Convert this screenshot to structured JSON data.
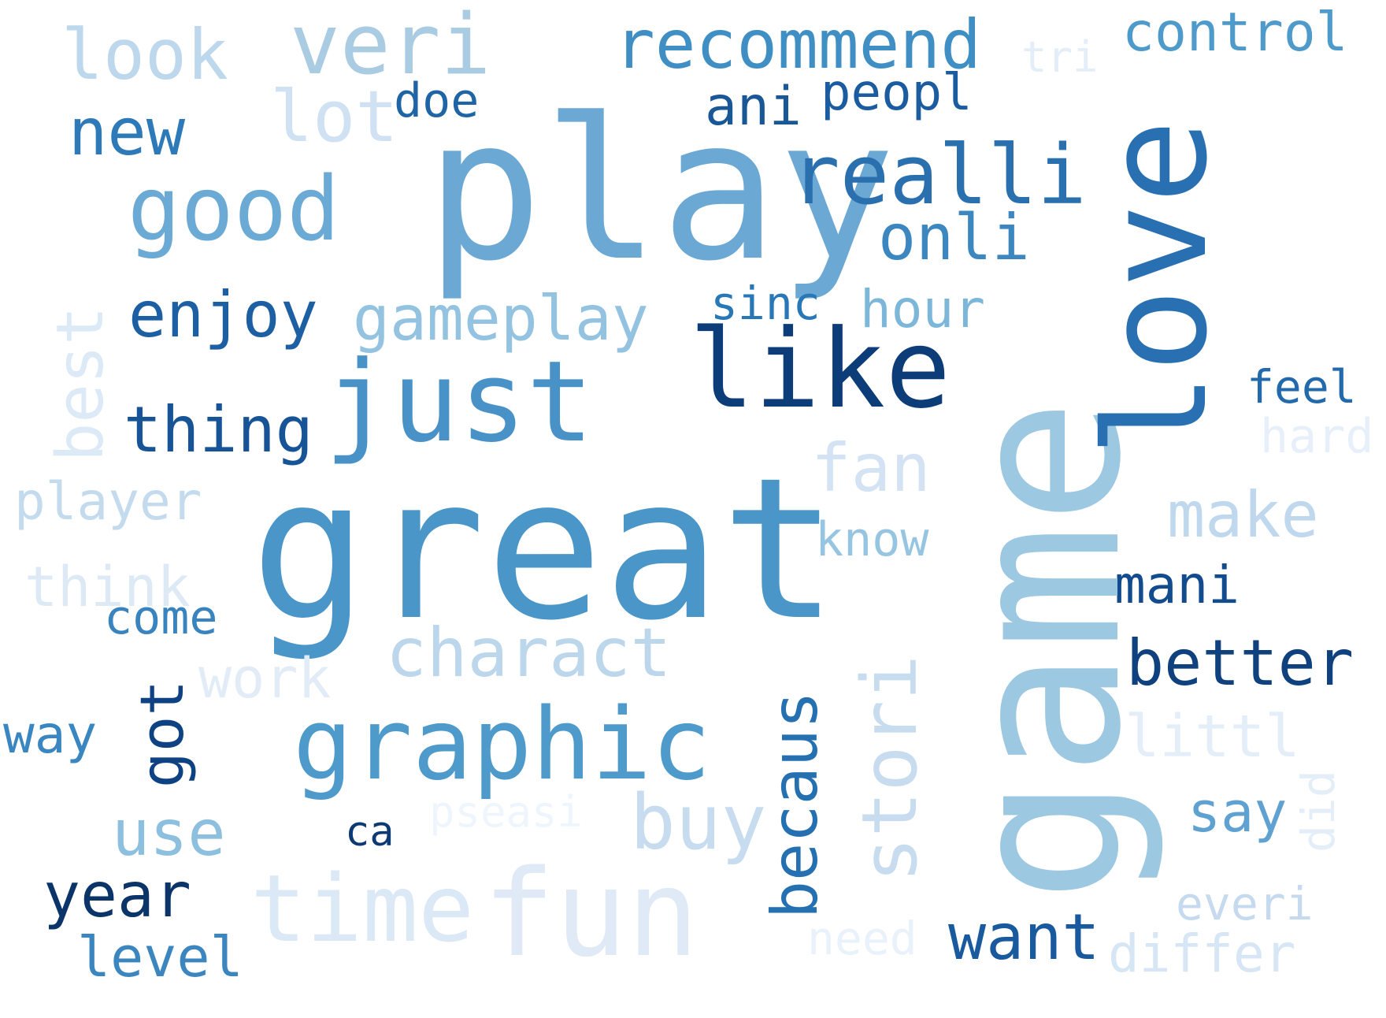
{
  "words": {
    "look": "look",
    "veri": "veri",
    "recommend": "recommend",
    "tri": "tri",
    "control": "control",
    "new": "new",
    "lot": "lot",
    "doe": "doe",
    "ani": "ani",
    "peopl": "peopl",
    "play": "play",
    "realli": "realli",
    "good": "good",
    "onli": "onli",
    "sinc": "sinc",
    "hour": "hour",
    "enjoy": "enjoy",
    "gameplay": "gameplay",
    "like": "like",
    "just": "just",
    "thing": "thing",
    "best": "best",
    "feel": "feel",
    "hard": "hard",
    "fan": "fan",
    "player": "player",
    "make": "make",
    "know": "know",
    "great": "great",
    "think": "think",
    "mani": "mani",
    "come": "come",
    "charact": "charact",
    "work": "work",
    "better": "better",
    "way": "way",
    "got": "got",
    "graphic": "graphic",
    "becaus": "becaus",
    "stori": "stori",
    "game": "game",
    "love": "love",
    "littl": "littl",
    "say": "say",
    "did": "did",
    "ca": "ca",
    "pseasi": "pseasi",
    "use": "use",
    "buy": "buy",
    "year": "year",
    "time": "time",
    "fun": "fun",
    "everi": "everi",
    "need": "need",
    "want": "want",
    "differ": "differ",
    "level": "level"
  },
  "colors": {
    "look": "#bdd7ec",
    "veri": "#a9cce3",
    "recommend": "#3f8fc5",
    "tri": "#e3eef9",
    "control": "#4e9acb",
    "new": "#2e7ab8",
    "lot": "#cfe1f2",
    "doe": "#1f65a6",
    "ani": "#1a5797",
    "peopl": "#1b5ca0",
    "play": "#6ba9d4",
    "realli": "#2a6fae",
    "good": "#6aaad4",
    "onli": "#3d87c0",
    "sinc": "#2878b8",
    "hour": "#7cb7da",
    "enjoy": "#1d5fa3",
    "gameplay": "#93c3e0",
    "like": "#0d3d79",
    "just": "#4892c7",
    "thing": "#175497",
    "best": "#dce9f6",
    "feel": "#226aab",
    "hard": "#e7f0fa",
    "fan": "#d3e3f3",
    "player": "#c4dbee",
    "make": "#c0d8ed",
    "know": "#96c5e1",
    "great": "#4a96c8",
    "think": "#dde9f5",
    "mani": "#134c8e",
    "come": "#3984bf",
    "charact": "#bcd6ec",
    "work": "#e1ecf7",
    "better": "#0e417e",
    "way": "#3a86c0",
    "got": "#0f4283",
    "graphic": "#4e9bcb",
    "becaus": "#2570b1",
    "stori": "#c8dcef",
    "game": "#9cc8e2",
    "love": "#2870b2",
    "littl": "#e4eef8",
    "say": "#5fa1d0",
    "did": "#e4eef9",
    "ca": "#0d3a74",
    "pseasi": "#eff5fc",
    "use": "#8dbfdf",
    "buy": "#c7dcef",
    "year": "#0b3469",
    "time": "#dbe8f5",
    "fun": "#dfeaf6",
    "everi": "#c5daee",
    "need": "#e9f1fa",
    "want": "#195a9e",
    "differ": "#d6e6f4",
    "level": "#3b86bf"
  }
}
